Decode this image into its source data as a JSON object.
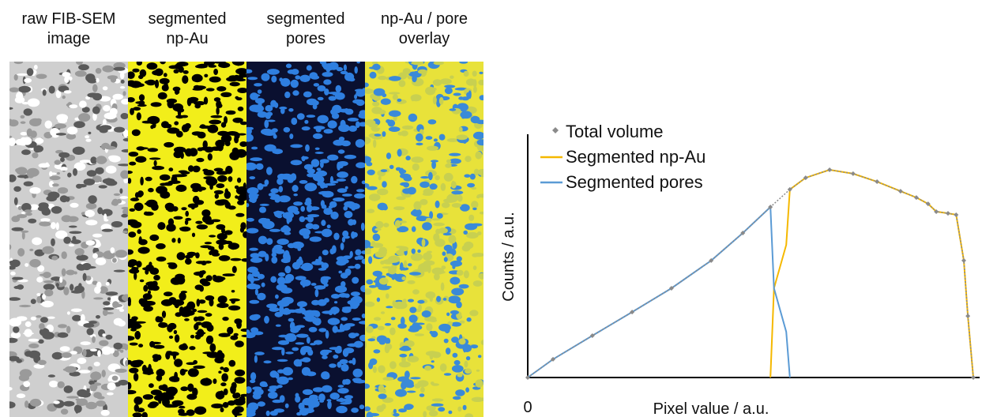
{
  "panels": [
    {
      "lines": [
        "raw FIB-SEM",
        "image"
      ]
    },
    {
      "lines": [
        "segmented",
        "np-Au"
      ]
    },
    {
      "lines": [
        "segmented",
        "pores"
      ]
    },
    {
      "lines": [
        "np-Au / pore",
        "overlay"
      ]
    }
  ],
  "chart_data": {
    "type": "line",
    "x_label": "Pixel value / a.u.",
    "y_label": "Counts / a.u.",
    "xlim": [
      0,
      100
    ],
    "ylim": [
      0,
      100
    ],
    "xticks": [
      0
    ],
    "grid": false,
    "series": [
      {
        "name": "Total volume",
        "color": "#8a8a8a",
        "marker": "diamond",
        "x": [
          0,
          5.6,
          14.3,
          23.1,
          31.8,
          40.6,
          47.6,
          53.7,
          58.0,
          61.5,
          66.8,
          72.0,
          77.3,
          82.5,
          86.0,
          88.6,
          90.4,
          93.0,
          94.8,
          96.5,
          97.4,
          98.6
        ],
        "values": [
          0,
          7.5,
          17.2,
          26.9,
          36.7,
          48.1,
          59.4,
          70.1,
          77.3,
          82.1,
          85.4,
          83.8,
          80.5,
          76.6,
          74.0,
          71.4,
          68.2,
          67.5,
          66.9,
          48.1,
          25.3,
          0
        ]
      },
      {
        "name": "Segmented np-Au",
        "color": "#f5b800",
        "x": [
          53.7,
          54.5,
          57.2,
          58.0,
          61.5,
          66.8,
          72.0,
          77.3,
          82.5,
          86.0,
          88.6,
          90.4,
          93.0,
          94.8,
          96.5,
          97.4,
          98.6
        ],
        "values": [
          0,
          36.7,
          54.5,
          77.3,
          82.1,
          85.4,
          83.8,
          80.5,
          76.6,
          74.0,
          71.4,
          68.2,
          67.5,
          66.9,
          48.1,
          25.3,
          0
        ]
      },
      {
        "name": "Segmented pores",
        "color": "#5b9bd5",
        "x": [
          0,
          5.6,
          14.3,
          23.1,
          31.8,
          40.6,
          47.6,
          53.7,
          54.5,
          57.2,
          58.0
        ],
        "values": [
          0,
          7.5,
          17.2,
          26.9,
          36.7,
          48.1,
          59.4,
          70.1,
          36.7,
          18.8,
          0
        ]
      }
    ]
  }
}
